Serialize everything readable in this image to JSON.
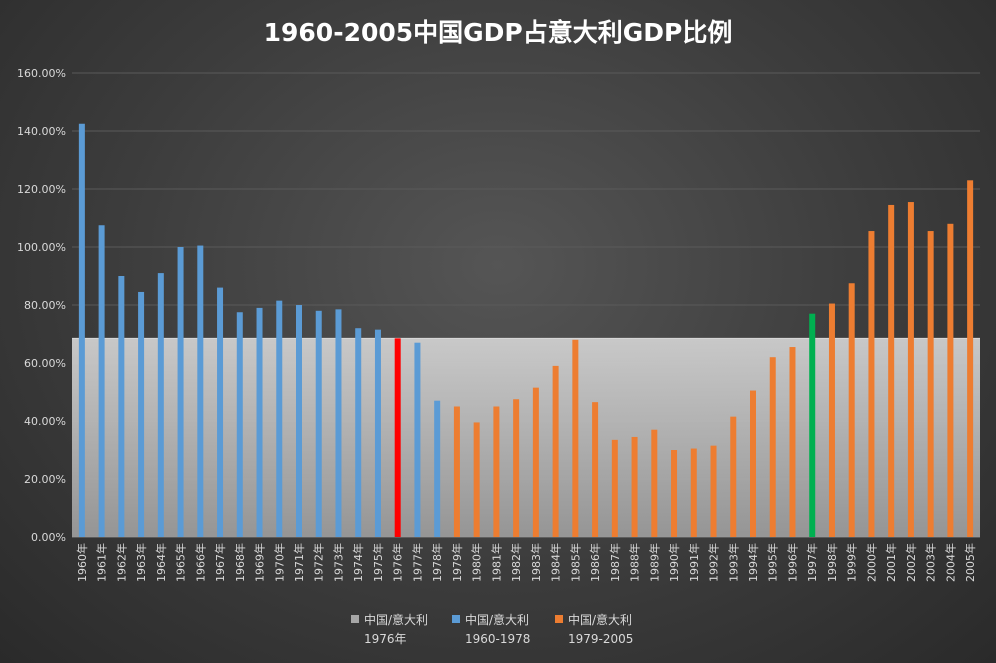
{
  "chart_data": {
    "type": "bar",
    "title": "1960-2005中国GDP占意大利GDP比例",
    "ylim": [
      0,
      1.6
    ],
    "yticks": [
      0,
      0.2,
      0.4,
      0.6,
      0.8,
      1.0,
      1.2,
      1.4,
      1.6
    ],
    "ytick_labels": [
      "0.00%",
      "20.00%",
      "40.00%",
      "60.00%",
      "80.00%",
      "100.00%",
      "120.00%",
      "140.00%",
      "160.00%"
    ],
    "grid": true,
    "legend_position": "bottom",
    "categories": [
      "1960年",
      "1961年",
      "1962年",
      "1963年",
      "1964年",
      "1965年",
      "1966年",
      "1967年",
      "1968年",
      "1969年",
      "1970年",
      "1971年",
      "1972年",
      "1973年",
      "1974年",
      "1975年",
      "1976年",
      "1977年",
      "1978年",
      "1979年",
      "1980年",
      "1981年",
      "1982年",
      "1983年",
      "1984年",
      "1985年",
      "1986年",
      "1987年",
      "1988年",
      "1989年",
      "1990年",
      "1991年",
      "1992年",
      "1993年",
      "1994年",
      "1995年",
      "1996年",
      "1997年",
      "1998年",
      "1999年",
      "2000年",
      "2001年",
      "2002年",
      "2003年",
      "2004年",
      "2005年"
    ],
    "values": [
      1.425,
      1.075,
      0.9,
      0.845,
      0.91,
      1.0,
      1.005,
      0.86,
      0.775,
      0.79,
      0.815,
      0.8,
      0.78,
      0.785,
      0.72,
      0.715,
      0.685,
      0.67,
      0.47,
      0.45,
      0.395,
      0.45,
      0.475,
      0.515,
      0.59,
      0.68,
      0.465,
      0.335,
      0.345,
      0.37,
      0.3,
      0.305,
      0.315,
      0.415,
      0.505,
      0.62,
      0.655,
      0.77,
      0.805,
      0.875,
      1.055,
      1.145,
      1.155,
      1.055,
      1.08,
      1.23
    ],
    "series": [
      {
        "name": "中国/意大利",
        "sub": "1976年",
        "value": 0.685,
        "color": "#a6a6a6"
      },
      {
        "name": "中国/意大利",
        "sub": "1960-1978",
        "color": "#5b9bd5"
      },
      {
        "name": "中国/意大利",
        "sub": "1979-2005",
        "color": "#ed7d31"
      }
    ],
    "colors": {
      "blue": "#5b9bd5",
      "orange": "#ed7d31",
      "red": "#ff0000",
      "green": "#00b050",
      "band": "#a6a6a6"
    }
  }
}
